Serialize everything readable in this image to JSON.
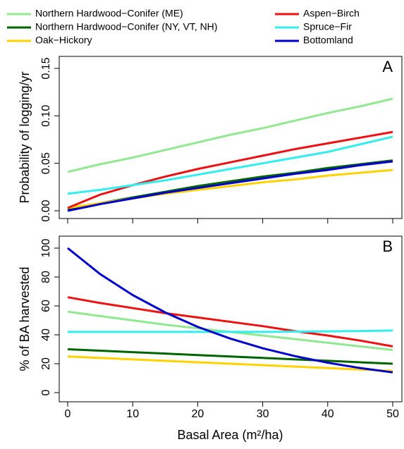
{
  "chart_data": [
    {
      "type": "line",
      "ylabel": "Probability of logging/yr",
      "annotation": "A",
      "x": [
        0,
        5,
        10,
        15,
        20,
        25,
        30,
        35,
        40,
        45,
        50
      ],
      "xlim": [
        0,
        50
      ],
      "xticks": [
        0,
        10,
        20,
        30,
        40,
        50
      ],
      "ylim": [
        0,
        0.15
      ],
      "yticks": [
        {
          "value": 0,
          "label": "0.00"
        },
        0.05,
        {
          "value": 0.1,
          "label": "0.10"
        },
        0.15
      ],
      "legend": "top",
      "series": [
        {
          "name": "Northern Hardwood−Conifer (ME)",
          "color": "#90e890",
          "values": [
            0.041,
            0.049,
            0.056,
            0.064,
            0.072,
            0.08,
            0.087,
            0.095,
            0.103,
            0.11,
            0.118
          ]
        },
        {
          "name": "Northern Hardwood−Conifer (NY, VT, NH)",
          "color": "#006400",
          "values": [
            0.001,
            0.008,
            0.014,
            0.02,
            0.026,
            0.031,
            0.036,
            0.04,
            0.045,
            0.049,
            0.053
          ]
        },
        {
          "name": "Oak−Hickory",
          "color": "#ffd200",
          "values": [
            0.003,
            0.008,
            0.013,
            0.018,
            0.022,
            0.026,
            0.03,
            0.033,
            0.037,
            0.04,
            0.043
          ]
        },
        {
          "name": "Aspen−Birch",
          "color": "#ee1111",
          "values": [
            0.003,
            0.017,
            0.027,
            0.036,
            0.044,
            0.051,
            0.058,
            0.065,
            0.071,
            0.077,
            0.083
          ]
        },
        {
          "name": "Spruce−Fir",
          "color": "#33eeee",
          "values": [
            0.018,
            0.022,
            0.027,
            0.032,
            0.038,
            0.044,
            0.05,
            0.056,
            0.062,
            0.07,
            0.078
          ]
        },
        {
          "name": "Bottomland",
          "color": "#0000cc",
          "values": [
            0,
            0.007,
            0.013,
            0.019,
            0.024,
            0.029,
            0.034,
            0.039,
            0.043,
            0.048,
            0.052
          ]
        }
      ]
    },
    {
      "type": "line",
      "ylabel": "% of BA harvested",
      "xlabel": "Basal Area (m²/ha)",
      "annotation": "B",
      "x": [
        0,
        5,
        10,
        15,
        20,
        25,
        30,
        35,
        40,
        45,
        50
      ],
      "xlim": [
        0,
        50
      ],
      "xticks": [
        0,
        10,
        20,
        30,
        40,
        50
      ],
      "ylim": [
        0,
        100
      ],
      "yticks": [
        0,
        20,
        40,
        60,
        80,
        100
      ],
      "series": [
        {
          "color": "#90e890",
          "values": [
            56,
            53,
            50,
            47,
            44.5,
            42,
            39.5,
            37,
            34.5,
            32,
            29.5
          ]
        },
        {
          "color": "#006400",
          "values": [
            30,
            29,
            28,
            27,
            26,
            25,
            24,
            23,
            22,
            21,
            20
          ]
        },
        {
          "color": "#ffd200",
          "values": [
            25,
            24,
            23,
            22,
            21,
            20,
            19,
            18,
            17,
            16,
            15
          ]
        },
        {
          "color": "#ee1111",
          "values": [
            66,
            62,
            58.5,
            55,
            52,
            49,
            46,
            42.5,
            39.5,
            36,
            32
          ]
        },
        {
          "color": "#33eeee",
          "values": [
            42,
            42,
            42,
            42,
            42,
            42,
            42,
            42.2,
            42.4,
            42.6,
            43
          ]
        },
        {
          "color": "#0000cc",
          "values": [
            100,
            82,
            67.5,
            55.5,
            45.5,
            37.4,
            30.7,
            25.2,
            20.7,
            17,
            14
          ]
        }
      ]
    }
  ]
}
